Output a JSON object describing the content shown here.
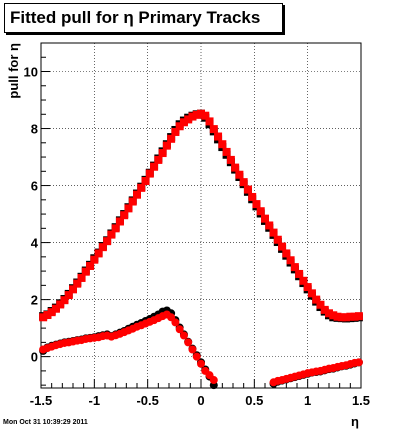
{
  "title": "Fitted pull for η  Primary Tracks",
  "footer": "Mon Oct 31 10:39:29 2011",
  "chart_data": {
    "type": "scatter",
    "xlabel": "η",
    "ylabel": "pull for η",
    "xlim": [
      -1.5,
      1.5
    ],
    "ylim": [
      -1.1,
      11.0
    ],
    "xticks": [
      -1.5,
      -1,
      -0.5,
      0,
      0.5,
      1,
      1.5
    ],
    "xtick_labels": [
      "-1.5",
      "-1",
      "-0.5",
      "0",
      "0.5",
      "1",
      "1.5"
    ],
    "yticks": [
      0,
      2,
      4,
      6,
      8,
      10
    ],
    "ytick_labels": [
      "0",
      "2",
      "4",
      "6",
      "8",
      "10"
    ],
    "grid": true,
    "series": [
      {
        "color": "#000000",
        "marker": "square",
        "x": [
          -1.48,
          -1.44,
          -1.4,
          -1.36,
          -1.32,
          -1.28,
          -1.24,
          -1.2,
          -1.16,
          -1.12,
          -1.08,
          -1.04,
          -1.0,
          -0.96,
          -0.92,
          -0.88,
          -0.84,
          -0.8,
          -0.76,
          -0.72,
          -0.68,
          -0.64,
          -0.6,
          -0.56,
          -0.52,
          -0.48,
          -0.44,
          -0.4,
          -0.36,
          -0.32,
          -0.28,
          -0.24,
          -0.2,
          -0.16,
          -0.12,
          -0.08,
          -0.04,
          0.0,
          0.04,
          0.08,
          0.12,
          0.16,
          0.2,
          0.24,
          0.28,
          0.32,
          0.36,
          0.4,
          0.44,
          0.48,
          0.52,
          0.56,
          0.6,
          0.64,
          0.68,
          0.72,
          0.76,
          0.8,
          0.84,
          0.88,
          0.92,
          0.96,
          1.0,
          1.04,
          1.08,
          1.12,
          1.16,
          1.2,
          1.24,
          1.28,
          1.32,
          1.36,
          1.4,
          1.44,
          1.48
        ],
        "y": [
          1.42,
          1.48,
          1.6,
          1.72,
          1.87,
          2.02,
          2.2,
          2.4,
          2.6,
          2.8,
          3.02,
          3.22,
          3.45,
          3.65,
          3.88,
          4.08,
          4.32,
          4.54,
          4.78,
          5.0,
          5.24,
          5.48,
          5.72,
          5.96,
          6.2,
          6.45,
          6.7,
          6.95,
          7.2,
          7.45,
          7.7,
          7.95,
          8.15,
          8.28,
          8.38,
          8.45,
          8.5,
          8.52,
          8.38,
          8.15,
          7.9,
          7.62,
          7.35,
          7.08,
          6.82,
          6.56,
          6.3,
          6.05,
          5.78,
          5.52,
          5.27,
          5.02,
          4.76,
          4.52,
          4.27,
          4.02,
          3.78,
          3.54,
          3.3,
          3.06,
          2.82,
          2.58,
          2.36,
          2.14,
          1.93,
          1.74,
          1.58,
          1.45,
          1.38,
          1.36,
          1.35,
          1.34,
          1.35,
          1.36,
          1.38
        ]
      },
      {
        "color": "#ff0000",
        "marker": "square",
        "x": [
          -1.48,
          -1.44,
          -1.4,
          -1.36,
          -1.32,
          -1.28,
          -1.24,
          -1.2,
          -1.16,
          -1.12,
          -1.08,
          -1.04,
          -1.0,
          -0.96,
          -0.92,
          -0.88,
          -0.84,
          -0.8,
          -0.76,
          -0.72,
          -0.68,
          -0.64,
          -0.6,
          -0.56,
          -0.52,
          -0.48,
          -0.44,
          -0.4,
          -0.36,
          -0.32,
          -0.28,
          -0.24,
          -0.2,
          -0.16,
          -0.12,
          -0.08,
          -0.04,
          0.0,
          0.04,
          0.08,
          0.12,
          0.16,
          0.2,
          0.24,
          0.28,
          0.32,
          0.36,
          0.4,
          0.44,
          0.48,
          0.52,
          0.56,
          0.6,
          0.64,
          0.68,
          0.72,
          0.76,
          0.8,
          0.84,
          0.88,
          0.92,
          0.96,
          1.0,
          1.04,
          1.08,
          1.12,
          1.16,
          1.2,
          1.24,
          1.28,
          1.32,
          1.36,
          1.4,
          1.44,
          1.48
        ],
        "y": [
          1.38,
          1.46,
          1.56,
          1.68,
          1.83,
          1.98,
          2.16,
          2.36,
          2.56,
          2.76,
          2.98,
          3.18,
          3.4,
          3.62,
          3.84,
          4.05,
          4.28,
          4.5,
          4.74,
          4.96,
          5.2,
          5.44,
          5.68,
          5.92,
          6.16,
          6.42,
          6.66,
          6.9,
          7.14,
          7.4,
          7.64,
          7.88,
          8.08,
          8.22,
          8.32,
          8.42,
          8.48,
          8.52,
          8.45,
          8.25,
          7.98,
          7.72,
          7.45,
          7.18,
          6.9,
          6.63,
          6.38,
          6.12,
          5.86,
          5.6,
          5.35,
          5.1,
          4.84,
          4.6,
          4.35,
          4.1,
          3.86,
          3.62,
          3.38,
          3.14,
          2.9,
          2.66,
          2.44,
          2.22,
          2.0,
          1.82,
          1.64,
          1.52,
          1.45,
          1.4,
          1.38,
          1.38,
          1.4,
          1.4,
          1.42
        ]
      },
      {
        "color": "#000000",
        "marker": "circle",
        "x": [
          -1.48,
          -1.44,
          -1.4,
          -1.36,
          -1.32,
          -1.28,
          -1.24,
          -1.2,
          -1.16,
          -1.12,
          -1.08,
          -1.04,
          -1.0,
          -0.96,
          -0.92,
          -0.88,
          -0.84,
          -0.8,
          -0.76,
          -0.72,
          -0.68,
          -0.64,
          -0.6,
          -0.56,
          -0.52,
          -0.48,
          -0.44,
          -0.4,
          -0.36,
          -0.32,
          -0.28,
          -0.24,
          -0.2,
          -0.16,
          -0.12,
          -0.08,
          -0.04,
          0.0,
          0.04,
          0.08,
          0.12,
          0.68,
          0.72,
          0.76,
          0.8,
          0.84,
          0.88,
          0.92,
          0.96,
          1.0,
          1.04,
          1.08,
          1.12,
          1.16,
          1.2,
          1.24,
          1.28,
          1.32,
          1.36,
          1.4,
          1.44,
          1.48
        ],
        "y": [
          0.2,
          0.32,
          0.38,
          0.42,
          0.46,
          0.5,
          0.52,
          0.55,
          0.58,
          0.6,
          0.64,
          0.66,
          0.68,
          0.72,
          0.75,
          0.78,
          0.72,
          0.78,
          0.84,
          0.9,
          0.98,
          1.05,
          1.12,
          1.18,
          1.25,
          1.32,
          1.4,
          1.48,
          1.58,
          1.62,
          1.52,
          1.28,
          1.02,
          0.78,
          0.52,
          0.28,
          0.05,
          -0.2,
          -0.45,
          -0.7,
          -1.0,
          -0.95,
          -0.88,
          -0.84,
          -0.8,
          -0.76,
          -0.72,
          -0.68,
          -0.64,
          -0.6,
          -0.56,
          -0.54,
          -0.52,
          -0.48,
          -0.44,
          -0.42,
          -0.38,
          -0.34,
          -0.32,
          -0.28,
          -0.24,
          -0.2
        ]
      },
      {
        "color": "#ff0000",
        "marker": "circle",
        "x": [
          -1.48,
          -1.44,
          -1.4,
          -1.36,
          -1.32,
          -1.28,
          -1.24,
          -1.2,
          -1.16,
          -1.12,
          -1.08,
          -1.04,
          -1.0,
          -0.96,
          -0.92,
          -0.88,
          -0.84,
          -0.8,
          -0.76,
          -0.72,
          -0.68,
          -0.64,
          -0.6,
          -0.56,
          -0.52,
          -0.48,
          -0.44,
          -0.4,
          -0.36,
          -0.32,
          -0.28,
          -0.24,
          -0.2,
          -0.16,
          -0.12,
          -0.08,
          -0.04,
          0.0,
          0.04,
          0.08,
          0.12,
          0.68,
          0.72,
          0.76,
          0.8,
          0.84,
          0.88,
          0.92,
          0.96,
          1.0,
          1.04,
          1.08,
          1.12,
          1.16,
          1.2,
          1.24,
          1.28,
          1.32,
          1.36,
          1.4,
          1.44,
          1.48
        ],
        "y": [
          0.25,
          0.3,
          0.35,
          0.4,
          0.44,
          0.48,
          0.5,
          0.53,
          0.56,
          0.58,
          0.62,
          0.64,
          0.66,
          0.68,
          0.72,
          0.74,
          0.7,
          0.75,
          0.8,
          0.86,
          0.92,
          0.98,
          1.05,
          1.1,
          1.16,
          1.22,
          1.28,
          1.35,
          1.42,
          1.48,
          1.38,
          1.2,
          0.96,
          0.74,
          0.5,
          0.25,
          0.0,
          -0.25,
          -0.5,
          -0.65,
          -0.82,
          -0.9,
          -0.85,
          -0.82,
          -0.78,
          -0.74,
          -0.7,
          -0.66,
          -0.62,
          -0.58,
          -0.55,
          -0.52,
          -0.5,
          -0.46,
          -0.42,
          -0.4,
          -0.36,
          -0.33,
          -0.3,
          -0.26,
          -0.22,
          -0.2
        ]
      }
    ]
  }
}
